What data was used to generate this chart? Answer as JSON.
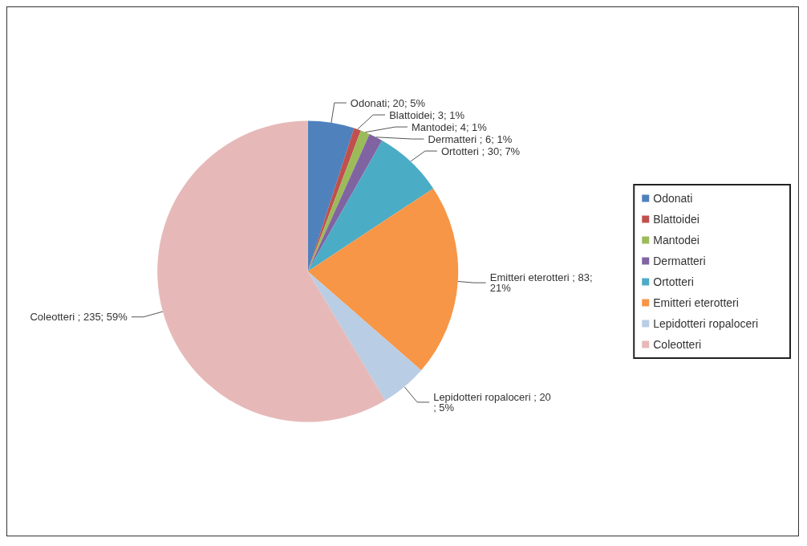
{
  "chart_data": {
    "type": "pie",
    "categories": [
      "Odonati",
      "Blattoidei",
      "Mantodei",
      "Dermatteri",
      "Ortotteri",
      "Emitteri eterotteri",
      "Lepidotteri ropaloceri",
      "Coleotteri"
    ],
    "values": [
      20,
      3,
      4,
      6,
      30,
      83,
      20,
      235
    ],
    "colors": [
      "#4f81bd",
      "#c0504d",
      "#9bbb59",
      "#8064a2",
      "#4bacc6",
      "#f79646",
      "#b9cde5",
      "#e6b9b8"
    ],
    "value_labels": [
      "Odonati; 20; 5%",
      "Blattoidei; 3; 1%",
      "Mantodei; 4; 1%",
      "Dermatteri ; 6; 1%",
      "Ortotteri ; 30; 7%",
      "Emitteri eterotteri ; 83; 21%",
      "Lepidotteri ropaloceri ; 20; 5%",
      "Coleotteri ; 235; 59%"
    ],
    "legend": "right"
  }
}
